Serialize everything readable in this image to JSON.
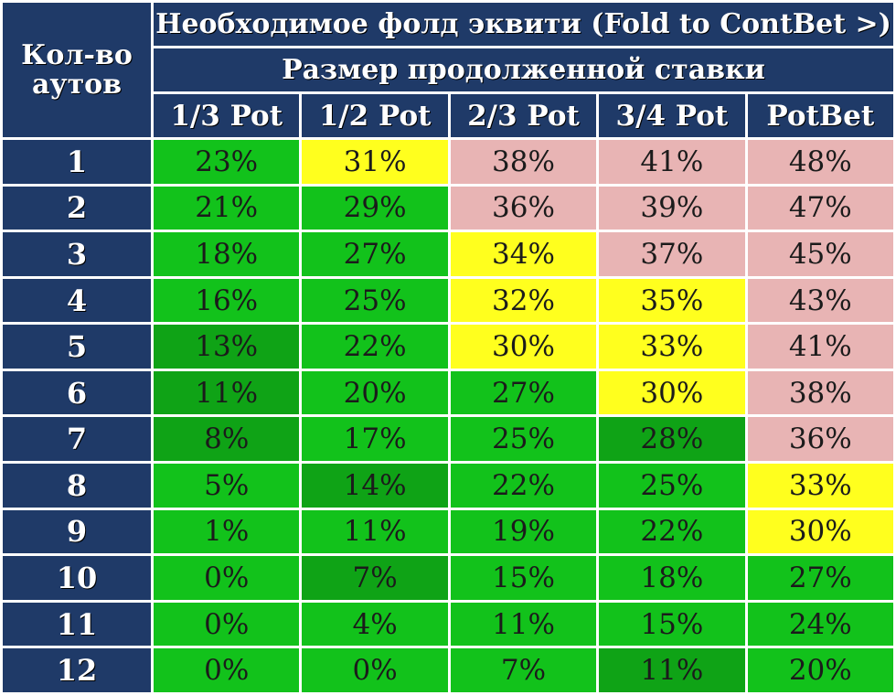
{
  "chart_data": {
    "type": "table",
    "title": "Необходимое фолд эквити (Fold to ContBet >)",
    "subtitle": "Размер продолженной ставки",
    "row_header": "Кол-во аутов",
    "columns": [
      "1/3 Pot",
      "1/2 Pot",
      "2/3 Pot",
      "3/4 Pot",
      "PotBet"
    ],
    "rows": [
      {
        "outs": "1",
        "values": [
          "23%",
          "31%",
          "38%",
          "41%",
          "48%"
        ],
        "colors": [
          "green",
          "yellow",
          "pink",
          "pink",
          "pink"
        ]
      },
      {
        "outs": "2",
        "values": [
          "21%",
          "29%",
          "36%",
          "39%",
          "47%"
        ],
        "colors": [
          "green",
          "green",
          "pink",
          "pink",
          "pink"
        ]
      },
      {
        "outs": "3",
        "values": [
          "18%",
          "27%",
          "34%",
          "37%",
          "45%"
        ],
        "colors": [
          "green",
          "green",
          "yellow",
          "pink",
          "pink"
        ]
      },
      {
        "outs": "4",
        "values": [
          "16%",
          "25%",
          "32%",
          "35%",
          "43%"
        ],
        "colors": [
          "green",
          "green",
          "yellow",
          "yellow",
          "pink"
        ]
      },
      {
        "outs": "5",
        "values": [
          "13%",
          "22%",
          "30%",
          "33%",
          "41%"
        ],
        "colors": [
          "green-dark",
          "green",
          "yellow",
          "yellow",
          "pink"
        ]
      },
      {
        "outs": "6",
        "values": [
          "11%",
          "20%",
          "27%",
          "30%",
          "38%"
        ],
        "colors": [
          "green-dark",
          "green",
          "green",
          "yellow",
          "pink"
        ]
      },
      {
        "outs": "7",
        "values": [
          "8%",
          "17%",
          "25%",
          "28%",
          "36%"
        ],
        "colors": [
          "green-dark",
          "green",
          "green",
          "green-dark",
          "pink"
        ]
      },
      {
        "outs": "8",
        "values": [
          "5%",
          "14%",
          "22%",
          "25%",
          "33%"
        ],
        "colors": [
          "green",
          "green-dark",
          "green",
          "green",
          "yellow"
        ]
      },
      {
        "outs": "9",
        "values": [
          "1%",
          "11%",
          "19%",
          "22%",
          "30%"
        ],
        "colors": [
          "green",
          "green",
          "green",
          "green",
          "yellow"
        ]
      },
      {
        "outs": "10",
        "values": [
          "0%",
          "7%",
          "15%",
          "18%",
          "27%"
        ],
        "colors": [
          "green",
          "green-dark",
          "green",
          "green",
          "green"
        ]
      },
      {
        "outs": "11",
        "values": [
          "0%",
          "4%",
          "11%",
          "15%",
          "24%"
        ],
        "colors": [
          "green",
          "green",
          "green",
          "green",
          "green"
        ]
      },
      {
        "outs": "12",
        "values": [
          "0%",
          "0%",
          "7%",
          "11%",
          "20%"
        ],
        "colors": [
          "green",
          "green",
          "green",
          "green-dark",
          "green"
        ]
      }
    ],
    "palette": {
      "green": "#12c21b",
      "green-dark": "#0fa316",
      "yellow": "#ffff1e",
      "pink": "#e8b4b4",
      "header": "#1f3a68"
    }
  }
}
